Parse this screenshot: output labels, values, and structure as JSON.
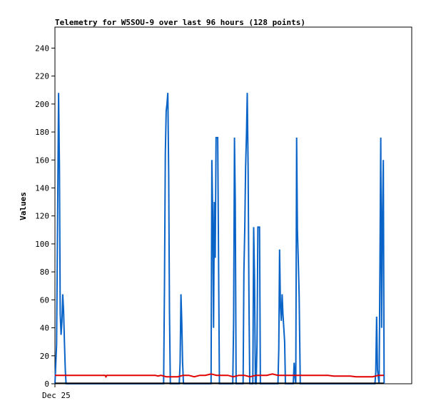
{
  "chart_data": {
    "type": "line",
    "title": "Telemetry for W5SOU-9 over last 96 hours (128 points)",
    "ylabel": "Values",
    "xlabel": "",
    "ylim": [
      0,
      255
    ],
    "xlim": [
      0,
      128
    ],
    "y_ticks": [
      0,
      20,
      40,
      60,
      80,
      100,
      120,
      140,
      160,
      180,
      200,
      220,
      240
    ],
    "x_ticks": [
      {
        "value": 0,
        "label": "Dec 25"
      }
    ],
    "grid": false,
    "legend": "none",
    "series": [
      {
        "color": "#0a64c8",
        "x": [
          0,
          0.6,
          1.0,
          1.3,
          1.6,
          1.9,
          2.2,
          2.5,
          2.8,
          3.1,
          3.4,
          3.7,
          4.0,
          4.3,
          4.6,
          4.9,
          5.2,
          5.5,
          5.8,
          39.0,
          39.3,
          39.6,
          39.9,
          40.2,
          40.5,
          40.8,
          41.1,
          41.4,
          41.7,
          42.0,
          42.3,
          44.6,
          44.9,
          45.2,
          45.5,
          45.8,
          46.1,
          56.0,
          56.3,
          56.6,
          56.9,
          57.2,
          57.5,
          57.8,
          58.1,
          58.4,
          58.7,
          59.0,
          63.8,
          64.1,
          64.4,
          64.7,
          65.0,
          67.5,
          67.8,
          68.1,
          68.4,
          68.7,
          69.0,
          69.3,
          69.6,
          69.9,
          71.0,
          71.3,
          71.6,
          71.9,
          72.2,
          72.5,
          72.8,
          73.1,
          73.4,
          73.7,
          80.0,
          80.3,
          80.6,
          80.9,
          81.2,
          81.5,
          81.8,
          82.1,
          82.4,
          82.7,
          85.5,
          85.8,
          86.1,
          86.4,
          86.7,
          87.0,
          87.3,
          87.6,
          88.0,
          114.5,
          114.8,
          115.1,
          115.4,
          115.7,
          116.0,
          116.3,
          116.6,
          116.9,
          117.2,
          117.5,
          117.8,
          118.1
        ],
        "values": [
          0,
          28,
          130,
          208,
          155,
          50,
          35,
          45,
          64,
          52,
          30,
          10,
          0,
          0,
          0,
          0,
          0,
          0,
          0,
          0,
          70,
          165,
          195,
          200,
          208,
          150,
          52,
          0,
          0,
          0,
          0,
          0,
          15,
          64,
          45,
          15,
          0,
          0,
          160,
          120,
          40,
          130,
          90,
          176,
          176,
          176,
          88,
          0,
          0,
          45,
          176,
          130,
          0,
          0,
          80,
          110,
          155,
          178,
          208,
          155,
          60,
          0,
          0,
          112,
          75,
          0,
          0,
          28,
          112,
          112,
          112,
          0,
          0,
          25,
          96,
          56,
          45,
          64,
          50,
          40,
          30,
          0,
          0,
          15,
          5,
          0,
          176,
          110,
          88,
          64,
          0,
          0,
          0,
          8,
          48,
          10,
          5,
          0,
          88,
          176,
          40,
          120,
          160,
          0
        ]
      },
      {
        "color": "#e00000",
        "x": [
          0,
          10,
          18,
          18.3,
          18.6,
          25,
          36,
          37,
          38,
          40,
          42,
          44,
          46,
          48,
          50,
          52,
          54,
          56,
          58,
          60,
          62,
          64,
          66,
          68,
          70,
          72,
          74,
          76,
          78,
          80,
          82,
          84,
          86,
          88,
          90,
          92,
          94,
          96,
          98,
          100,
          102,
          104,
          106,
          108,
          110,
          112,
          114,
          116,
          118
        ],
        "values": [
          6,
          6,
          6,
          5,
          6,
          6,
          6,
          5.5,
          6,
          5,
          5,
          5,
          6,
          6,
          5,
          6,
          6,
          7,
          6,
          6,
          6,
          5,
          6,
          6,
          5,
          6,
          6,
          6,
          7,
          6,
          6,
          6,
          6,
          6,
          6,
          6,
          6,
          6,
          6,
          5.5,
          5.5,
          5.5,
          5.5,
          5,
          5,
          5,
          5,
          6,
          6
        ]
      },
      {
        "color": "#000000",
        "x": [
          0,
          118
        ],
        "values": [
          0.3,
          0.3
        ]
      }
    ]
  }
}
